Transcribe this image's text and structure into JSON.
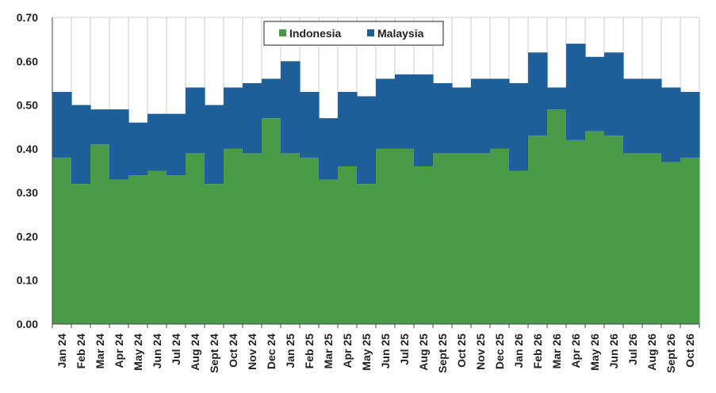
{
  "chart_data": {
    "type": "area",
    "stacked": true,
    "step": true,
    "categories": [
      "Jan 24",
      "Feb 24",
      "Mar 24",
      "Apr 24",
      "May 24",
      "Jun 24",
      "Jul 24",
      "Aug 24",
      "Sept 24",
      "Oct 24",
      "Nov 24",
      "Dec 24",
      "Jan 25",
      "Feb 25",
      "Mar 25",
      "Apr 25",
      "May 25",
      "Jun 25",
      "Jul 25",
      "Aug 25",
      "Sept 25",
      "Oct 25",
      "Nov 25",
      "Dec 25",
      "Jan 26",
      "Feb 26",
      "Mar 26",
      "Apr 26",
      "May 26",
      "Jun 26",
      "Jul 26",
      "Aug 26",
      "Sept 26",
      "Oct 26"
    ],
    "series": [
      {
        "name": "Indonesia",
        "color": "#4a9a4a",
        "values": [
          0.38,
          0.32,
          0.41,
          0.33,
          0.34,
          0.35,
          0.34,
          0.39,
          0.32,
          0.4,
          0.39,
          0.47,
          0.39,
          0.38,
          0.33,
          0.36,
          0.32,
          0.4,
          0.4,
          0.36,
          0.39,
          0.39,
          0.39,
          0.4,
          0.35,
          0.43,
          0.49,
          0.42,
          0.44,
          0.43,
          0.39,
          0.39,
          0.37,
          0.38
        ]
      },
      {
        "name": "Malaysia",
        "color": "#1f5f99",
        "values": [
          0.15,
          0.18,
          0.08,
          0.16,
          0.12,
          0.13,
          0.14,
          0.15,
          0.18,
          0.14,
          0.16,
          0.09,
          0.21,
          0.15,
          0.14,
          0.17,
          0.2,
          0.16,
          0.17,
          0.21,
          0.16,
          0.15,
          0.17,
          0.16,
          0.2,
          0.19,
          0.05,
          0.22,
          0.17,
          0.19,
          0.17,
          0.17,
          0.17,
          0.15
        ]
      }
    ],
    "yticks": [
      "0.00",
      "0.10",
      "0.20",
      "0.30",
      "0.40",
      "0.50",
      "0.60",
      "0.70"
    ],
    "ylim": [
      0,
      0.7
    ],
    "grid": "vertical",
    "legend_position": "top-center",
    "title": "",
    "xlabel": "",
    "ylabel": ""
  }
}
